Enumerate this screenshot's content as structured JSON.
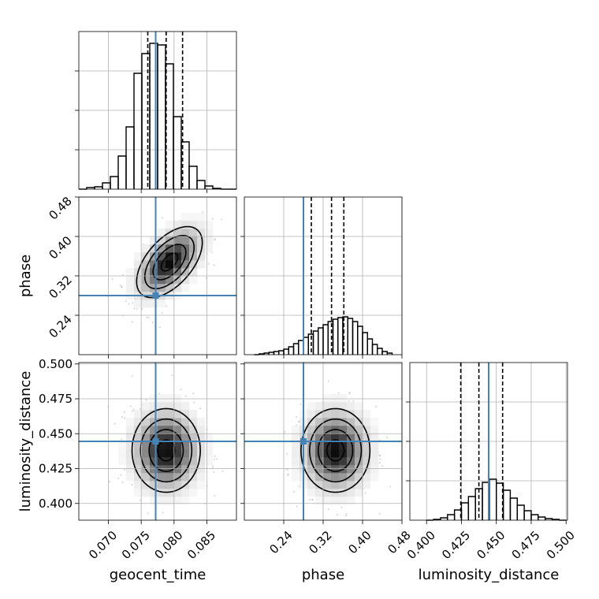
{
  "chart_data": {
    "type": "corner",
    "parameters": [
      "geocent_time",
      "phase",
      "luminosity_distance"
    ],
    "axis_labels": {
      "geocent_time": "geocent_time",
      "phase": "phase",
      "luminosity_distance": "luminosity_distance"
    },
    "ranges": {
      "geocent_time": [
        0.0655,
        0.0895
      ],
      "phase": [
        0.16,
        0.48
      ],
      "luminosity_distance": [
        0.388,
        0.501
      ]
    },
    "ticks": {
      "geocent_time": {
        "values": [
          0.07,
          0.075,
          0.08,
          0.085
        ],
        "labels": [
          "0.070",
          "0.075",
          "0.080",
          "0.085"
        ]
      },
      "phase": {
        "values": [
          0.24,
          0.32,
          0.4,
          0.48
        ],
        "labels": [
          "0.24",
          "0.32",
          "0.40",
          "0.48"
        ]
      },
      "luminosity_distance": {
        "values": [
          0.4,
          0.425,
          0.45,
          0.475,
          0.5
        ],
        "labels": [
          "0.400",
          "0.425",
          "0.450",
          "0.475",
          "0.500"
        ]
      }
    },
    "truths": {
      "geocent_time": 0.0772,
      "phase": 0.28,
      "luminosity_distance": 0.4445
    },
    "quantiles": {
      "geocent_time": [
        0.076,
        0.0788,
        0.0813
      ],
      "phase": [
        0.296,
        0.337,
        0.362
      ],
      "luminosity_distance": [
        0.4245,
        0.4375,
        0.4545
      ]
    },
    "histograms": {
      "geocent_time": {
        "edges": [
          0.0655,
          0.0667,
          0.0679,
          0.0691,
          0.0703,
          0.0715,
          0.0727,
          0.0739,
          0.0751,
          0.0763,
          0.0775,
          0.0787,
          0.0799,
          0.0811,
          0.0823,
          0.0835,
          0.0847,
          0.0859,
          0.0871,
          0.0883,
          0.0895
        ],
        "counts": [
          0,
          2,
          3,
          8,
          16,
          42,
          79,
          147,
          172,
          185,
          183,
          159,
          92,
          60,
          29,
          11,
          4,
          1,
          0,
          0
        ],
        "ymax": 200
      },
      "phase": {
        "edges": [
          0.18,
          0.19,
          0.2,
          0.21,
          0.22,
          0.23,
          0.24,
          0.25,
          0.26,
          0.27,
          0.28,
          0.29,
          0.3,
          0.31,
          0.32,
          0.33,
          0.34,
          0.35,
          0.36,
          0.37,
          0.38,
          0.39,
          0.4,
          0.41,
          0.42,
          0.43,
          0.44,
          0.45,
          0.46
        ],
        "counts": [
          0,
          1,
          2,
          3,
          4,
          5,
          7,
          10,
          14,
          18,
          22,
          26,
          30,
          34,
          38,
          42,
          45,
          47,
          48,
          46,
          42,
          36,
          28,
          20,
          13,
          8,
          4,
          2
        ],
        "ymax": 200
      },
      "luminosity_distance": {
        "edges": [
          0.4,
          0.405,
          0.41,
          0.415,
          0.42,
          0.425,
          0.43,
          0.435,
          0.44,
          0.445,
          0.45,
          0.455,
          0.46,
          0.465,
          0.47,
          0.475,
          0.48,
          0.485,
          0.49,
          0.495,
          0.5
        ],
        "counts": [
          0,
          1,
          3,
          7,
          13,
          22,
          30,
          40,
          48,
          52,
          47,
          38,
          28,
          19,
          12,
          7,
          4,
          2,
          1,
          0
        ],
        "ymax": 200
      }
    },
    "hist2d": [
      {
        "x": "geocent_time",
        "y": "phase",
        "center": [
          0.0793,
          0.348
        ],
        "sigma": [
          0.0025,
          0.036
        ],
        "rho": 0.55
      },
      {
        "x": "geocent_time",
        "y": "luminosity_distance",
        "center": [
          0.0788,
          0.438
        ],
        "sigma": [
          0.0026,
          0.015
        ],
        "rho": 0.0
      },
      {
        "x": "phase",
        "y": "luminosity_distance",
        "center": [
          0.345,
          0.438
        ],
        "sigma": [
          0.035,
          0.015
        ],
        "rho": 0.0
      }
    ],
    "contour_levels_sigma": [
      0.5,
      1.0,
      1.5,
      2.0
    ],
    "grid": true,
    "legend": "none"
  }
}
